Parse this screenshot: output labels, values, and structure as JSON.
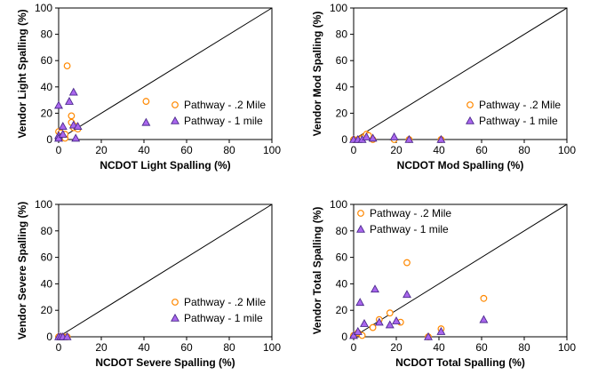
{
  "marker_styles": {
    "circle": {
      "fill": "#ffffff",
      "stroke": "#ff8800"
    },
    "triangle": {
      "fill": "#aa66ee",
      "stroke": "#4b2a8c"
    }
  },
  "chart_data": [
    {
      "type": "scatter",
      "xlabel": "NCDOT Light Spalling (%)",
      "ylabel": "Vendor Light Spalling (%)",
      "xlim": [
        0,
        100
      ],
      "ylim": [
        0,
        100
      ],
      "xticks": [
        "0",
        "20",
        "40",
        "60",
        "80",
        "100"
      ],
      "yticks": [
        "0",
        "20",
        "40",
        "60",
        "80",
        "100"
      ],
      "grid": false,
      "legend_position": "right",
      "reference_line": "y = x",
      "series": [
        {
          "name": "Pathway - .2 Mile",
          "marker": "circle",
          "points": [
            [
              0,
              6
            ],
            [
              1,
              5
            ],
            [
              2,
              3
            ],
            [
              3,
              1
            ],
            [
              3,
              4
            ],
            [
              4,
              56
            ],
            [
              6,
              18
            ],
            [
              6,
              13
            ],
            [
              7,
              9
            ],
            [
              8,
              10
            ],
            [
              9,
              8
            ],
            [
              41,
              29
            ]
          ]
        },
        {
          "name": "Pathway - 1 mile",
          "marker": "triangle",
          "points": [
            [
              0,
              26
            ],
            [
              0,
              3
            ],
            [
              0,
              1
            ],
            [
              2,
              10
            ],
            [
              2,
              4
            ],
            [
              5,
              29
            ],
            [
              7,
              36
            ],
            [
              7,
              11
            ],
            [
              8,
              1
            ],
            [
              9,
              10
            ],
            [
              41,
              13
            ]
          ]
        }
      ]
    },
    {
      "type": "scatter",
      "xlabel": "NCDOT Mod Spalling (%)",
      "ylabel": "Vendor Mod Spalling (%)",
      "xlim": [
        0,
        100
      ],
      "ylim": [
        0,
        100
      ],
      "xticks": [
        "0",
        "20",
        "40",
        "60",
        "80",
        "100"
      ],
      "yticks": [
        "0",
        "20",
        "40",
        "60",
        "80",
        "100"
      ],
      "grid": false,
      "legend_position": "right",
      "reference_line": "y = x",
      "series": [
        {
          "name": "Pathway - .2 Mile",
          "marker": "circle",
          "points": [
            [
              0,
              0
            ],
            [
              2,
              0
            ],
            [
              4,
              1
            ],
            [
              5,
              2
            ],
            [
              6,
              4
            ],
            [
              7,
              3
            ],
            [
              9,
              0
            ],
            [
              19,
              0
            ],
            [
              26,
              0
            ],
            [
              41,
              0
            ]
          ]
        },
        {
          "name": "Pathway - 1 mile",
          "marker": "triangle",
          "points": [
            [
              0,
              0
            ],
            [
              2,
              0
            ],
            [
              4,
              0
            ],
            [
              6,
              2
            ],
            [
              9,
              1
            ],
            [
              19,
              2
            ],
            [
              26,
              0
            ],
            [
              41,
              0
            ]
          ]
        }
      ]
    },
    {
      "type": "scatter",
      "xlabel": "NCDOT Severe Spalling (%)",
      "ylabel": "Vendor Severe Spalling (%)",
      "xlim": [
        0,
        100
      ],
      "ylim": [
        0,
        100
      ],
      "xticks": [
        "0",
        "20",
        "40",
        "60",
        "80",
        "100"
      ],
      "yticks": [
        "0",
        "20",
        "40",
        "60",
        "80",
        "100"
      ],
      "grid": false,
      "legend_position": "right",
      "reference_line": "y = x",
      "series": [
        {
          "name": "Pathway - .2 Mile",
          "marker": "circle",
          "points": [
            [
              0,
              0
            ],
            [
              1,
              0
            ],
            [
              2,
              0
            ],
            [
              4,
              0
            ]
          ]
        },
        {
          "name": "Pathway - 1 mile",
          "marker": "triangle",
          "points": [
            [
              0,
              0
            ],
            [
              1,
              0
            ],
            [
              2,
              0
            ],
            [
              4,
              0
            ]
          ]
        }
      ]
    },
    {
      "type": "scatter",
      "xlabel": "NCDOT Total Spalling (%)",
      "ylabel": "Vendor Total Spalling (%)",
      "xlim": [
        0,
        100
      ],
      "ylim": [
        0,
        100
      ],
      "xticks": [
        "0",
        "20",
        "40",
        "60",
        "80",
        "100"
      ],
      "yticks": [
        "0",
        "20",
        "40",
        "60",
        "80",
        "100"
      ],
      "grid": false,
      "legend_position": "top-left",
      "reference_line": "y = x",
      "series": [
        {
          "name": "Pathway - .2 Mile",
          "marker": "circle",
          "points": [
            [
              0,
              1
            ],
            [
              2,
              3
            ],
            [
              4,
              1
            ],
            [
              9,
              7
            ],
            [
              12,
              13
            ],
            [
              17,
              18
            ],
            [
              22,
              11
            ],
            [
              25,
              56
            ],
            [
              35,
              0
            ],
            [
              41,
              6
            ],
            [
              61,
              29
            ]
          ]
        },
        {
          "name": "Pathway - 1 mile",
          "marker": "triangle",
          "points": [
            [
              0,
              1
            ],
            [
              2,
              4
            ],
            [
              3,
              26
            ],
            [
              5,
              10
            ],
            [
              10,
              36
            ],
            [
              12,
              11
            ],
            [
              17,
              9
            ],
            [
              20,
              12
            ],
            [
              25,
              32
            ],
            [
              35,
              0
            ],
            [
              41,
              4
            ],
            [
              61,
              13
            ]
          ]
        }
      ]
    }
  ]
}
